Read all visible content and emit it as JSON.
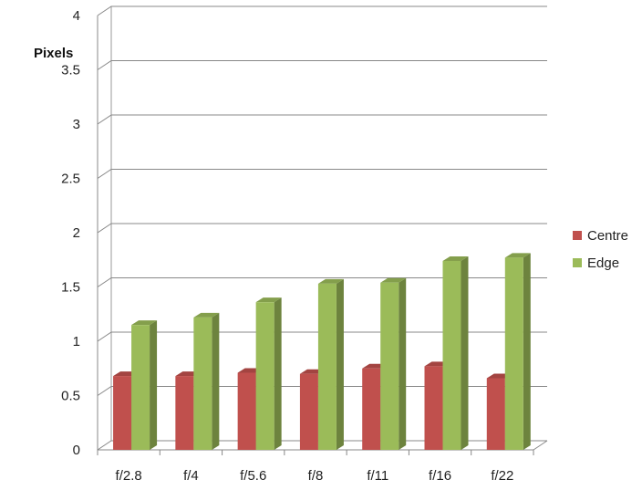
{
  "chart_data": {
    "type": "bar",
    "style": "3d-clustered-column",
    "ylabel": "Pixels",
    "xlabel": "",
    "title": "",
    "categories": [
      "f/2.8",
      "f/4",
      "f/5.6",
      "f/8",
      "f/11",
      "f/16",
      "f/22"
    ],
    "series": [
      {
        "name": "Centre",
        "color": "#c0504d",
        "values": [
          0.68,
          0.68,
          0.71,
          0.7,
          0.75,
          0.77,
          0.66
        ]
      },
      {
        "name": "Edge",
        "color": "#9bbb59",
        "values": [
          1.15,
          1.22,
          1.36,
          1.53,
          1.54,
          1.74,
          1.77
        ]
      }
    ],
    "ylim": [
      0,
      4
    ],
    "yticks": [
      "0",
      "0.5",
      "1",
      "1.5",
      "2",
      "2.5",
      "3",
      "3.5",
      "4"
    ],
    "grid": true,
    "legend_position": "right"
  }
}
